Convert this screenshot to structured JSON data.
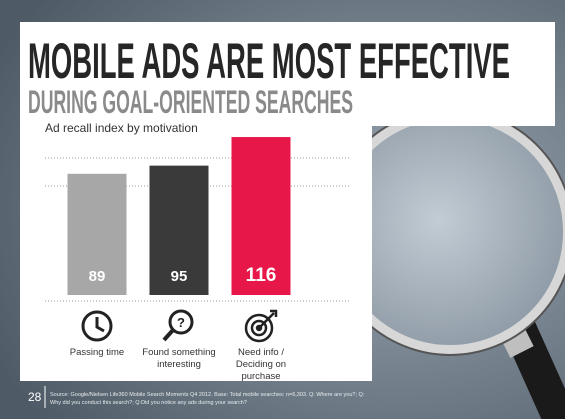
{
  "chart_data": {
    "type": "bar",
    "title": "MOBILE ADS ARE MOST EFFECTIVE",
    "subtitle": "DURING GOAL-ORIENTED SEARCHES",
    "ylabel": "Ad recall index by motivation",
    "categories": [
      "Passing time",
      "Found something interesting",
      "Need info / Deciding on purchase"
    ],
    "values": [
      89,
      95,
      116
    ],
    "colors": [
      "#a7a7a7",
      "#3b3a3a",
      "#e8174a"
    ],
    "ylim": [
      0,
      120
    ]
  },
  "footer": {
    "page": "28",
    "source": "Source: Google/Nielsen Life360 Mobile Search Moments Q4 2012. Base: Total mobile searches: n=6,303. Q: Where are you?; Q: Why did you conduct this search?; Q:Did you notice any ads during your search?"
  }
}
